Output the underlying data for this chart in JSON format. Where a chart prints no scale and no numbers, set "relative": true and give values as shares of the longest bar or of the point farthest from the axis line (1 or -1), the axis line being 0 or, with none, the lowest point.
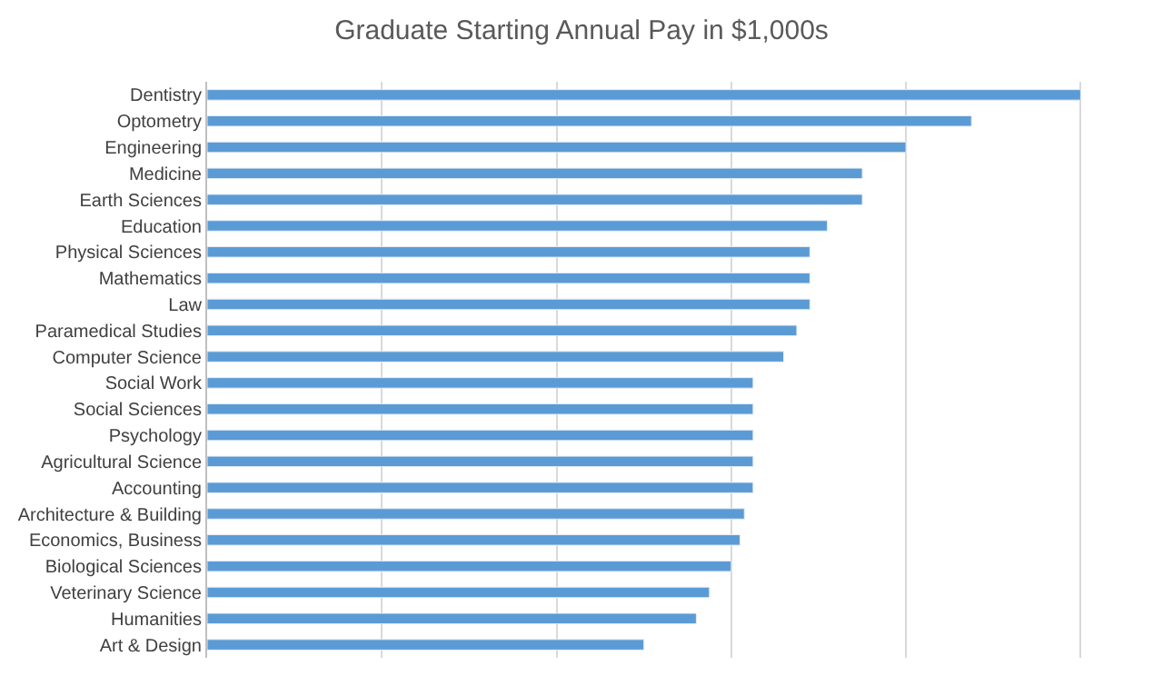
{
  "chart_data": {
    "type": "bar",
    "orientation": "horizontal",
    "relative": true,
    "title": "Graduate Starting Annual Pay in $1,000s",
    "categories": [
      "Dentistry",
      "Optometry",
      "Engineering",
      "Medicine",
      "Earth Sciences",
      "Education",
      "Physical Sciences",
      "Mathematics",
      "Law",
      "Paramedical Studies",
      "Computer Science",
      "Social Work",
      "Social Sciences",
      "Psychology",
      "Agricultural Science",
      "Accounting",
      "Architecture & Building",
      "Economics, Business",
      "Biological Sciences",
      "Veterinary Science",
      "Humanities",
      "Art & Design"
    ],
    "values": [
      1,
      0.875,
      0.8,
      0.75,
      0.75,
      0.71,
      0.69,
      0.69,
      0.69,
      0.675,
      0.66,
      0.625,
      0.625,
      0.625,
      0.625,
      0.625,
      0.615,
      0.61,
      0.6,
      0.575,
      0.56,
      0.5
    ],
    "color": "#5b9bd5",
    "grid": "x",
    "legend": false
  }
}
